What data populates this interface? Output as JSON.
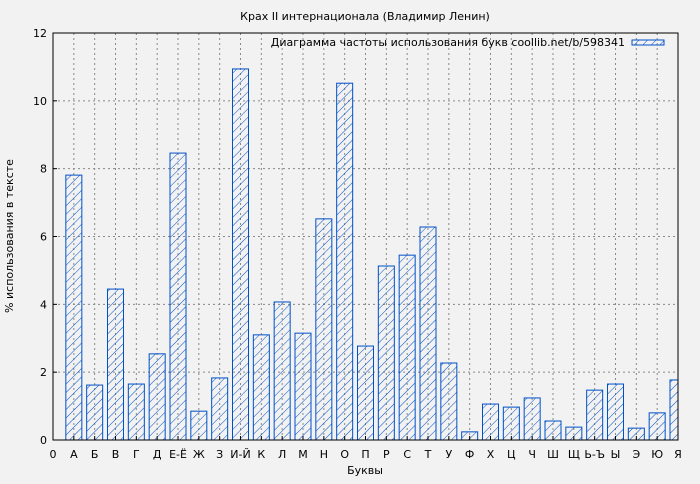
{
  "chart_data": {
    "type": "bar",
    "title": "Крах II интернационала (Владимир Ленин)",
    "xlabel": "Буквы",
    "ylabel": "% использования в тексте",
    "ylim": [
      0,
      12
    ],
    "yticks": [
      0,
      2,
      4,
      6,
      8,
      10,
      12
    ],
    "grid": true,
    "legend_position": "top-right",
    "x_origin_label": "0",
    "categories": [
      "А",
      "Б",
      "В",
      "Г",
      "Д",
      "Е-Ё",
      "Ж",
      "З",
      "И-Й",
      "К",
      "Л",
      "М",
      "Н",
      "О",
      "П",
      "Р",
      "С",
      "Т",
      "У",
      "Ф",
      "Х",
      "Ц",
      "Ч",
      "Ш",
      "Щ",
      "Ь-Ъ",
      "Ы",
      "Э",
      "Ю",
      "Я"
    ],
    "series": [
      {
        "name": "Диаграмма частоты использования букв coollib.net/b/598341",
        "values": [
          7.81,
          1.62,
          4.45,
          1.65,
          2.54,
          8.46,
          0.85,
          1.83,
          10.94,
          3.1,
          4.07,
          3.15,
          6.52,
          10.52,
          2.77,
          5.13,
          5.45,
          6.28,
          2.27,
          0.24,
          1.06,
          0.97,
          1.24,
          0.56,
          0.38,
          1.47,
          1.65,
          0.35,
          0.8,
          1.77
        ],
        "color": "#0050c8"
      }
    ]
  }
}
